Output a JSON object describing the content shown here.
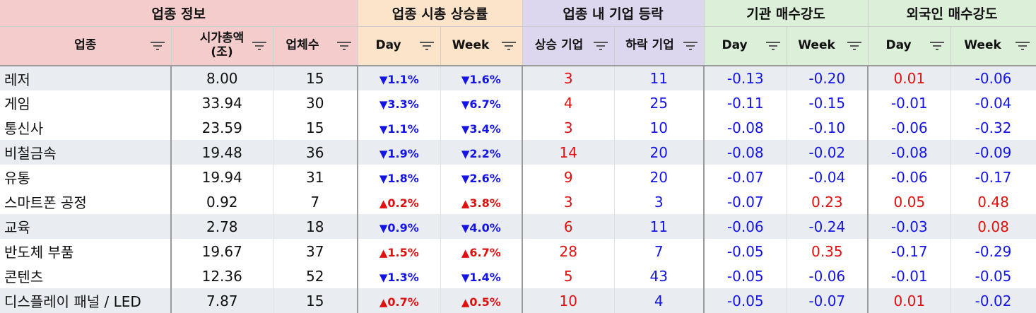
{
  "groups": {
    "info": "업종 정보",
    "mcap": "업종 시총 상승률",
    "firms": "업종 내 기업 등락",
    "inst": "기관 매수강도",
    "foreign": "외국인 매수강도"
  },
  "headers": {
    "sector": "업종",
    "mcap_line1": "시가총액",
    "mcap_line2": "(조)",
    "count": "업체수",
    "mcap_day": "Day",
    "mcap_week": "Week",
    "up_firms": "상승 기업",
    "down_firms": "하락 기업",
    "inst_day": "Day",
    "inst_week": "Week",
    "for_day": "Day",
    "for_week": "Week"
  },
  "icons": {
    "filter": "filter-icon",
    "up": "▲",
    "down": "▼"
  },
  "colors": {
    "positive": "#e01010",
    "negative": "#1414e6",
    "info_header": "#f4cccc",
    "mcap_header": "#fce4ca",
    "firms_header": "#dcd6ee",
    "strength_header": "#dcefd8"
  },
  "rows": [
    {
      "sector": "레저",
      "mcap": "8.00",
      "count": "15",
      "day": "1.1%",
      "day_dir": "down",
      "week": "1.6%",
      "week_dir": "down",
      "up": "3",
      "down": "11",
      "inst_day": "-0.13",
      "inst_week": "-0.20",
      "for_day": "0.01",
      "for_week": "-0.06"
    },
    {
      "sector": "게임",
      "mcap": "33.94",
      "count": "30",
      "day": "3.3%",
      "day_dir": "down",
      "week": "6.7%",
      "week_dir": "down",
      "up": "4",
      "down": "25",
      "inst_day": "-0.11",
      "inst_week": "-0.15",
      "for_day": "-0.01",
      "for_week": "-0.04"
    },
    {
      "sector": "통신사",
      "mcap": "23.59",
      "count": "15",
      "day": "1.1%",
      "day_dir": "down",
      "week": "3.4%",
      "week_dir": "down",
      "up": "3",
      "down": "10",
      "inst_day": "-0.08",
      "inst_week": "-0.10",
      "for_day": "-0.06",
      "for_week": "-0.32"
    },
    {
      "sector": "비철금속",
      "mcap": "19.48",
      "count": "36",
      "day": "1.9%",
      "day_dir": "down",
      "week": "2.2%",
      "week_dir": "down",
      "up": "14",
      "down": "20",
      "inst_day": "-0.08",
      "inst_week": "-0.02",
      "for_day": "-0.08",
      "for_week": "-0.09"
    },
    {
      "sector": "유통",
      "mcap": "19.94",
      "count": "31",
      "day": "1.8%",
      "day_dir": "down",
      "week": "2.6%",
      "week_dir": "down",
      "up": "9",
      "down": "20",
      "inst_day": "-0.07",
      "inst_week": "-0.04",
      "for_day": "-0.06",
      "for_week": "-0.17"
    },
    {
      "sector": "스마트폰 공정",
      "mcap": "0.92",
      "count": "7",
      "day": "0.2%",
      "day_dir": "up",
      "week": "3.8%",
      "week_dir": "up",
      "up": "3",
      "down": "3",
      "inst_day": "-0.07",
      "inst_week": "0.23",
      "for_day": "0.05",
      "for_week": "0.48"
    },
    {
      "sector": "교육",
      "mcap": "2.78",
      "count": "18",
      "day": "0.9%",
      "day_dir": "down",
      "week": "4.0%",
      "week_dir": "down",
      "up": "6",
      "down": "11",
      "inst_day": "-0.06",
      "inst_week": "-0.24",
      "for_day": "-0.03",
      "for_week": "0.08"
    },
    {
      "sector": "반도체 부품",
      "mcap": "19.67",
      "count": "37",
      "day": "1.5%",
      "day_dir": "up",
      "week": "6.7%",
      "week_dir": "up",
      "up": "28",
      "down": "7",
      "inst_day": "-0.05",
      "inst_week": "0.35",
      "for_day": "-0.17",
      "for_week": "-0.29"
    },
    {
      "sector": "콘텐츠",
      "mcap": "12.36",
      "count": "52",
      "day": "1.3%",
      "day_dir": "down",
      "week": "1.4%",
      "week_dir": "down",
      "up": "5",
      "down": "43",
      "inst_day": "-0.05",
      "inst_week": "-0.06",
      "for_day": "-0.01",
      "for_week": "-0.05"
    },
    {
      "sector": "디스플레이 패널 / LED",
      "mcap": "7.87",
      "count": "15",
      "day": "0.7%",
      "day_dir": "up",
      "week": "0.5%",
      "week_dir": "up",
      "up": "10",
      "down": "4",
      "inst_day": "-0.05",
      "inst_week": "-0.07",
      "for_day": "0.01",
      "for_week": "-0.02"
    }
  ]
}
